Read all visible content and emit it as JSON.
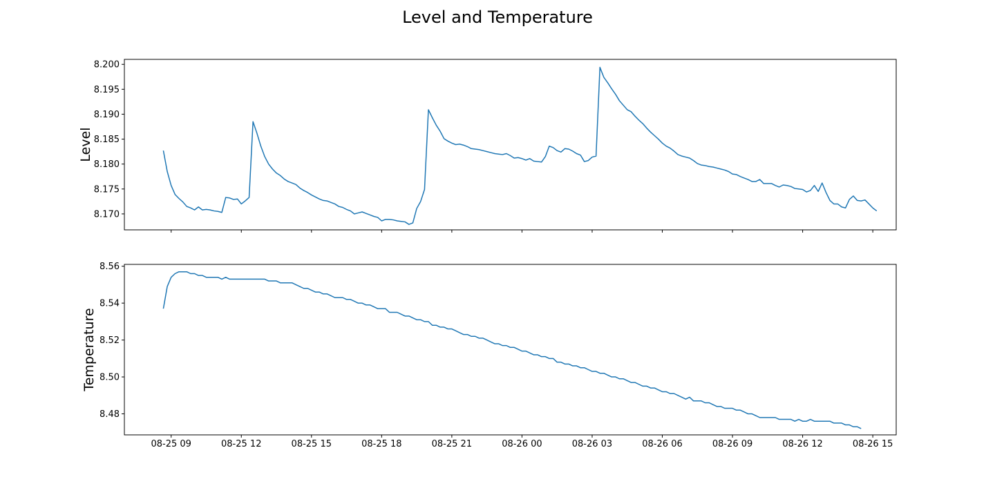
{
  "figure": {
    "title": "Level and Temperature"
  },
  "colors": {
    "line": "#1f77b4",
    "axis": "#000000",
    "background": "#ffffff"
  },
  "chart_data": [
    {
      "type": "line",
      "title": "",
      "xlabel": "",
      "ylabel": "Level",
      "x_tick_labels_visible": false,
      "xlim": [
        "2024-08-25T07:00",
        "2024-08-26T16:00"
      ],
      "ylim": [
        8.1668,
        8.201
      ],
      "y_ticks": [
        "8.170",
        "8.175",
        "8.180",
        "8.185",
        "8.190",
        "8.195",
        "8.200"
      ],
      "x_ticks": [
        "2024-08-25T09:00",
        "2024-08-25T12:00",
        "2024-08-25T15:00",
        "2024-08-25T18:00",
        "2024-08-25T21:00",
        "2024-08-26T00:00",
        "2024-08-26T03:00",
        "2024-08-26T06:00",
        "2024-08-26T09:00",
        "2024-08-26T12:00",
        "2024-08-26T15:00"
      ],
      "grid": false,
      "series": [
        {
          "start": "2024-08-25T08:40",
          "interval_minutes": 10,
          "values": [
            8.1827,
            8.1785,
            8.1757,
            8.1739,
            8.1731,
            8.1724,
            8.1715,
            8.1712,
            8.1708,
            8.1714,
            8.1708,
            8.1709,
            8.1708,
            8.1706,
            8.1705,
            8.1703,
            8.1733,
            8.1732,
            8.1729,
            8.173,
            8.172,
            8.1726,
            8.1733,
            8.1885,
            8.1862,
            8.1836,
            8.1815,
            8.18,
            8.179,
            8.1782,
            8.1777,
            8.177,
            8.1765,
            8.1762,
            8.1759,
            8.1752,
            8.1747,
            8.1743,
            8.1738,
            8.1734,
            8.173,
            8.1727,
            8.1726,
            8.1723,
            8.172,
            8.1715,
            8.1713,
            8.1709,
            8.1706,
            8.17,
            8.1702,
            8.1704,
            8.1701,
            8.1698,
            8.1695,
            8.1693,
            8.1686,
            8.1689,
            8.1689,
            8.1688,
            8.1686,
            8.1685,
            8.1684,
            8.1679,
            8.1682,
            8.1711,
            8.1725,
            8.1749,
            8.1909,
            8.1893,
            8.1878,
            8.1866,
            8.1851,
            8.1846,
            8.1842,
            8.1839,
            8.184,
            8.1838,
            8.1835,
            8.1831,
            8.183,
            8.1829,
            8.1827,
            8.1825,
            8.1823,
            8.1821,
            8.182,
            8.1819,
            8.1821,
            8.1817,
            8.1812,
            8.1813,
            8.1811,
            8.1808,
            8.1811,
            8.1806,
            8.1805,
            8.1804,
            8.1815,
            8.1836,
            8.1833,
            8.1827,
            8.1824,
            8.1831,
            8.183,
            8.1826,
            8.1821,
            8.1818,
            8.1805,
            8.1807,
            8.1814,
            8.1816,
            8.1994,
            8.1974,
            8.1963,
            8.1951,
            8.194,
            8.1927,
            8.1918,
            8.1909,
            8.1905,
            8.1896,
            8.1888,
            8.1881,
            8.1872,
            8.1864,
            8.1857,
            8.185,
            8.1842,
            8.1836,
            8.1832,
            8.1826,
            8.1819,
            8.1816,
            8.1814,
            8.1812,
            8.1807,
            8.1801,
            8.1798,
            8.1797,
            8.1795,
            8.1794,
            8.1792,
            8.179,
            8.1788,
            8.1785,
            8.178,
            8.1779,
            8.1775,
            8.1772,
            8.1769,
            8.1765,
            8.1765,
            8.1769,
            8.1761,
            8.1761,
            8.1761,
            8.1757,
            8.1754,
            8.1758,
            8.1757,
            8.1755,
            8.1751,
            8.175,
            8.1749,
            8.1744,
            8.1747,
            8.1757,
            8.1745,
            8.1762,
            8.1743,
            8.1727,
            8.172,
            8.172,
            8.1714,
            8.1712,
            8.1729,
            8.1736,
            8.1727,
            8.1726,
            8.1728,
            8.172,
            8.1712,
            8.1706
          ]
        }
      ]
    },
    {
      "type": "line",
      "title": "",
      "xlabel": "",
      "ylabel": "Temperature",
      "xlim": [
        "2024-08-25T07:00",
        "2024-08-26T16:00"
      ],
      "ylim": [
        8.4686,
        8.561
      ],
      "y_ticks": [
        "8.48",
        "8.50",
        "8.52",
        "8.54",
        "8.56"
      ],
      "x_ticks": [
        "08-25 09",
        "08-25 12",
        "08-25 15",
        "08-25 18",
        "08-25 21",
        "08-26 00",
        "08-26 03",
        "08-26 06",
        "08-26 09",
        "08-26 12",
        "08-26 15"
      ],
      "x_tick_times": [
        "2024-08-25T09:00",
        "2024-08-25T12:00",
        "2024-08-25T15:00",
        "2024-08-25T18:00",
        "2024-08-25T21:00",
        "2024-08-26T00:00",
        "2024-08-26T03:00",
        "2024-08-26T06:00",
        "2024-08-26T09:00",
        "2024-08-26T12:00",
        "2024-08-26T15:00"
      ],
      "grid": false,
      "series": [
        {
          "start": "2024-08-25T08:40",
          "interval_minutes": 10,
          "values": [
            8.537,
            8.549,
            8.554,
            8.556,
            8.557,
            8.557,
            8.557,
            8.556,
            8.556,
            8.555,
            8.555,
            8.554,
            8.554,
            8.554,
            8.554,
            8.553,
            8.554,
            8.553,
            8.553,
            8.553,
            8.553,
            8.553,
            8.553,
            8.553,
            8.553,
            8.553,
            8.553,
            8.552,
            8.552,
            8.552,
            8.551,
            8.551,
            8.551,
            8.551,
            8.55,
            8.549,
            8.548,
            8.548,
            8.547,
            8.546,
            8.546,
            8.545,
            8.545,
            8.544,
            8.543,
            8.543,
            8.543,
            8.542,
            8.542,
            8.541,
            8.54,
            8.54,
            8.539,
            8.539,
            8.538,
            8.537,
            8.537,
            8.537,
            8.535,
            8.535,
            8.535,
            8.534,
            8.533,
            8.533,
            8.532,
            8.531,
            8.531,
            8.53,
            8.53,
            8.528,
            8.528,
            8.527,
            8.527,
            8.526,
            8.526,
            8.525,
            8.524,
            8.523,
            8.523,
            8.522,
            8.522,
            8.521,
            8.521,
            8.52,
            8.519,
            8.518,
            8.518,
            8.517,
            8.517,
            8.516,
            8.516,
            8.515,
            8.514,
            8.514,
            8.513,
            8.512,
            8.512,
            8.511,
            8.511,
            8.51,
            8.51,
            8.508,
            8.508,
            8.507,
            8.507,
            8.506,
            8.506,
            8.505,
            8.505,
            8.504,
            8.503,
            8.503,
            8.502,
            8.502,
            8.501,
            8.5,
            8.5,
            8.499,
            8.499,
            8.498,
            8.497,
            8.497,
            8.496,
            8.495,
            8.495,
            8.494,
            8.494,
            8.493,
            8.492,
            8.492,
            8.491,
            8.491,
            8.49,
            8.489,
            8.488,
            8.489,
            8.487,
            8.487,
            8.487,
            8.486,
            8.486,
            8.485,
            8.484,
            8.484,
            8.483,
            8.483,
            8.483,
            8.482,
            8.482,
            8.481,
            8.48,
            8.48,
            8.479,
            8.478,
            8.478,
            8.478,
            8.478,
            8.478,
            8.477,
            8.477,
            8.477,
            8.477,
            8.476,
            8.477,
            8.476,
            8.476,
            8.477,
            8.476,
            8.476,
            8.476,
            8.476,
            8.476,
            8.475,
            8.475,
            8.475,
            8.474,
            8.474,
            8.473,
            8.473,
            8.472
          ]
        }
      ]
    }
  ]
}
